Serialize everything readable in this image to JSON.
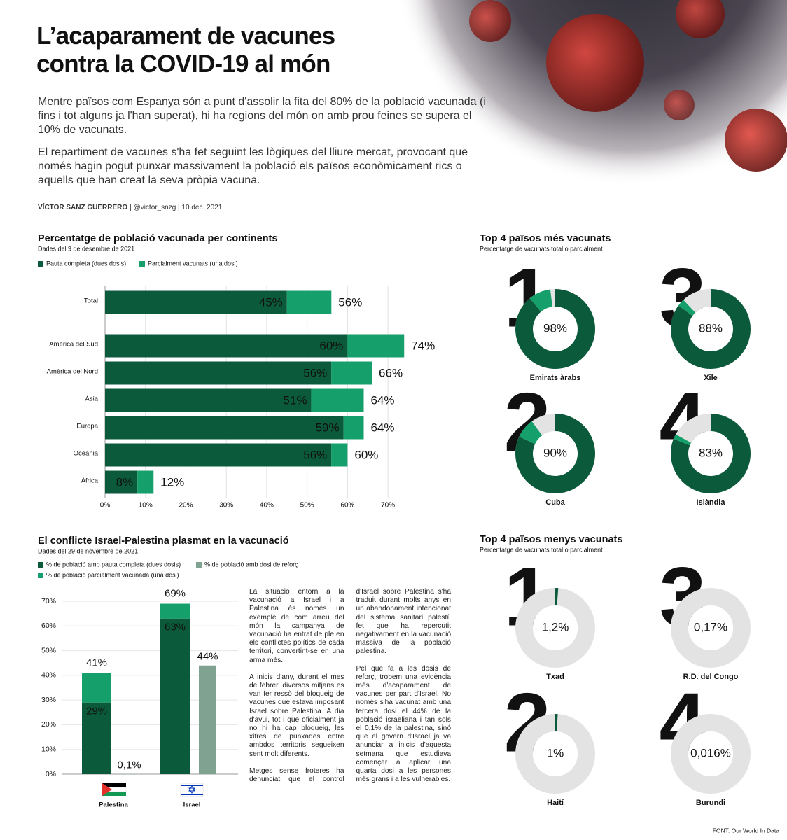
{
  "header": {
    "title": "L’acaparament de vacunes contra la COVID-19 al món",
    "intro": [
      "Mentre països com Espanya són a punt d'assolir la fita del 80% de la població vacunada (i fins i tot alguns ja l'han superat), hi ha regions del món on amb prou feines se supera el 10% de vacunats.",
      "El repartiment de vacunes s'ha fet seguint les lògiques del lliure mercat, provocant que només hagin pogut punxar massivament la població els països econòmicament rics o aquells que han creat la seva pròpia vacuna."
    ],
    "author": "VÍCTOR SANZ GUERRERO",
    "details": "| @victor_snzg | 10 dec. 2021"
  },
  "chart_data": [
    {
      "type": "hbar-stacked",
      "title": "Percentatge de població vacunada per continents",
      "subtitle": "Dades del 9 de desembre de 2021",
      "categories": [
        "Total",
        "Amèrica del Sud",
        "Amèrica del Nord",
        "Àsia",
        "Europa",
        "Oceania",
        "Àfrica"
      ],
      "series": [
        {
          "name": "Pauta completa (dues dosis)",
          "color": "#0b5a3c",
          "values": [
            45,
            60,
            56,
            51,
            59,
            56,
            8
          ],
          "value_labels": [
            "45%",
            "60%",
            "56%",
            "51%",
            "59%",
            "56%",
            "8%"
          ]
        },
        {
          "name": "Parcialment vacunats (una dosi)",
          "color": "#15a06b",
          "values": [
            11,
            14,
            10,
            13,
            5,
            4,
            4
          ]
        }
      ],
      "totals": [
        56,
        74,
        66,
        64,
        64,
        60,
        12
      ],
      "total_labels": [
        "56%",
        "74%",
        "66%",
        "64%",
        "64%",
        "60%",
        "12%"
      ],
      "xlim": [
        0,
        75
      ],
      "xticks": [
        {
          "value": 0,
          "label": "0%"
        },
        {
          "value": 10,
          "label": "10%"
        },
        {
          "value": 20,
          "label": "20%"
        },
        {
          "value": 30,
          "label": "30%"
        },
        {
          "value": 40,
          "label": "40%"
        },
        {
          "value": 50,
          "label": "50%"
        },
        {
          "value": 60,
          "label": "60%"
        },
        {
          "value": 70,
          "label": "70%"
        }
      ],
      "grid": true
    },
    {
      "type": "donut",
      "title": "Top 4 països més vacunats",
      "subtitle": "Percentatge de vacunats total o parcialment",
      "colors": [
        "#0b5a3c",
        "#15a06b"
      ],
      "items": [
        {
          "rank": 1,
          "label": "Emirats àrabs",
          "values": [
            89,
            9
          ],
          "value_label": "98%"
        },
        {
          "rank": 2,
          "label": "Cuba",
          "values": [
            82,
            8
          ],
          "value_label": "90%"
        },
        {
          "rank": 3,
          "label": "Xile",
          "values": [
            85,
            3
          ],
          "value_label": "88%"
        },
        {
          "rank": 4,
          "label": "Islàndia",
          "values": [
            81,
            2
          ],
          "value_label": "83%"
        }
      ]
    },
    {
      "type": "bar-grouped",
      "title": "El conflicte Israel-Palestina plasmat en la vacunació",
      "subtitle": "Dades del 29 de novembre de 2021",
      "categories": [
        "Palestina",
        "Israel"
      ],
      "series": [
        {
          "name": "% de població amb pauta completa (dues dosis)",
          "color": "#0b5a3c",
          "stacked": true,
          "values": [
            29,
            63
          ],
          "value_labels": [
            "29%",
            "63%"
          ]
        },
        {
          "name": "% de població parcialment vacunada (una dosi)",
          "color": "#15a06b",
          "stacked": true,
          "values": [
            12,
            6
          ]
        },
        {
          "name": "% de població amb dosi de reforç",
          "color": "#7fa390",
          "stacked": false,
          "values": [
            0.1,
            44
          ],
          "value_labels": [
            "0,1%",
            "44%"
          ]
        }
      ],
      "totals": [
        41,
        69
      ],
      "total_labels": [
        "41%",
        "69%"
      ],
      "ylim": [
        0,
        70
      ],
      "yticks": [
        {
          "value": 0,
          "label": "0%"
        },
        {
          "value": 10,
          "label": "10%"
        },
        {
          "value": 20,
          "label": "20%"
        },
        {
          "value": 30,
          "label": "30%"
        },
        {
          "value": 40,
          "label": "40%"
        },
        {
          "value": 50,
          "label": "50%"
        },
        {
          "value": 60,
          "label": "60%"
        },
        {
          "value": 70,
          "label": "70%"
        }
      ],
      "grid": true
    },
    {
      "type": "donut",
      "title": "Top 4 països menys vacunats",
      "subtitle": "Percentatge de vacunats total o parcialment",
      "colors": [
        "#0b5a3c"
      ],
      "items": [
        {
          "rank": 1,
          "label": "Txad",
          "values": [
            1.2
          ],
          "value_label": "1,2%"
        },
        {
          "rank": 2,
          "label": "Haití",
          "values": [
            1
          ],
          "value_label": "1%"
        },
        {
          "rank": 3,
          "label": "R.D. del Congo",
          "values": [
            0.17
          ],
          "value_label": "0,17%"
        },
        {
          "rank": 4,
          "label": "Burundi",
          "values": [
            0.016
          ],
          "value_label": "0,016%"
        }
      ]
    }
  ],
  "article": {
    "paragraphs": [
      "La situació entorn a la vacunació a Israel i a Palestina és només un exemple de com arreu del món la campanya de vacunació ha entrat de ple en els conflictes polítics de cada territori, convertint-se en una arma més.",
      "A inicis d'any, durant el mes de febrer, diversos mitjans es van fer ressò del bloqueig de vacunes que estava imposant Israel sobre Palestina. A dia d'avui, tot i que oficialment ja no hi ha cap bloqueig, les xifres de punxades entre ambdos territoris segueixen sent molt diferents.",
      "Metges sense froteres ha denunciat que el control d'Israel sobre Palestina s'ha traduit durant molts anys en un abandonament intencionat del sistema sanitari palestí, fet que ha repercutit negativament en la vacunació massiva de la població palestina.",
      "Pel que fa a les dosis de reforç, trobem una evidència més d'acaparament de vacunes per part d'Israel. No només s'ha vacunat amb una tercera dosi el 44% de la població israeliana i tan sols el 0,1% de la palestina, sinó que el govern d'Israel ja va anunciar a inicis d'aquesta setmana que estudiava començar a aplicar una quarta dosi a les persones més grans i a les vulnerables."
    ]
  },
  "source": "FONT: Our World In Data"
}
